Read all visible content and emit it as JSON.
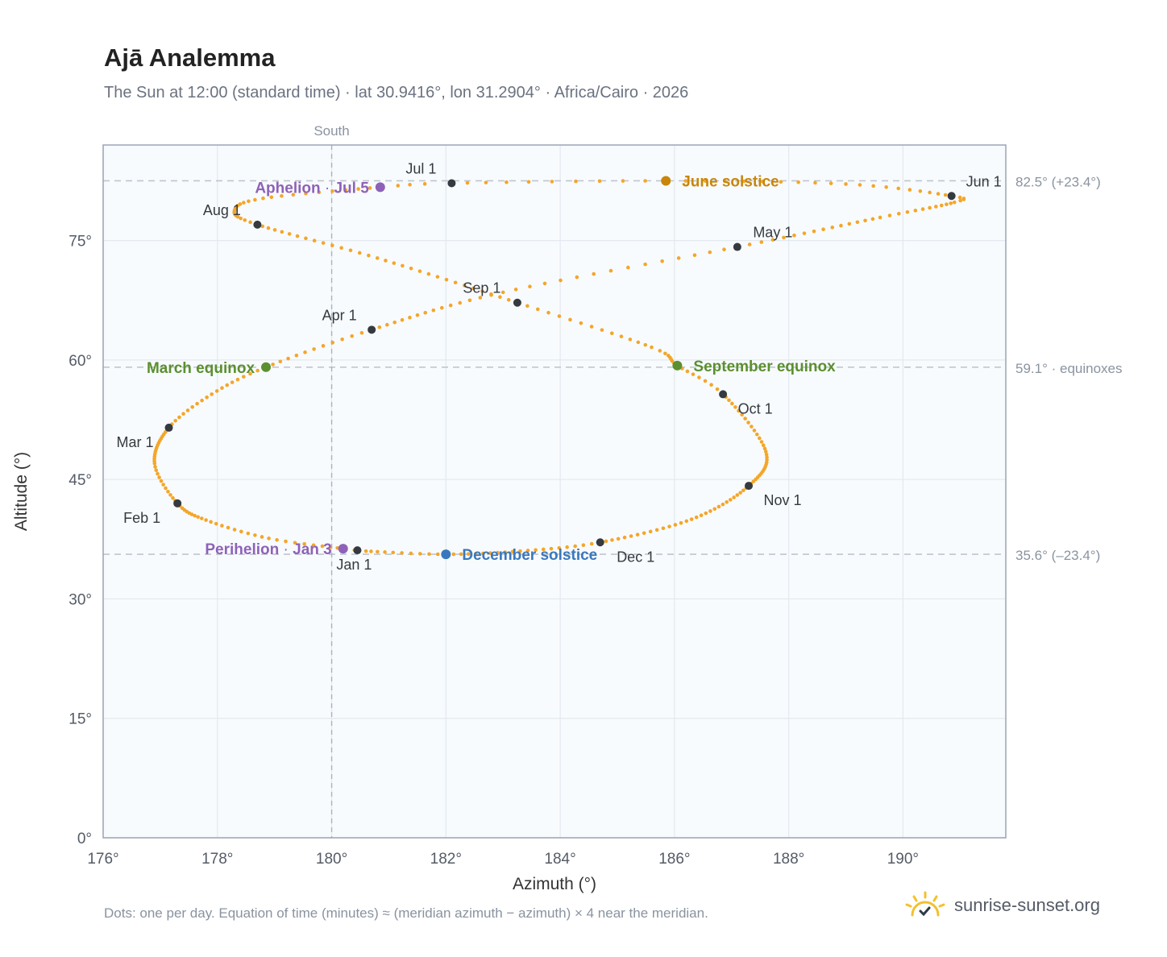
{
  "header": {
    "title": "Ajā Analemma",
    "subtitle": "The Sun at 12:00 (standard time) · lat 30.9416°, lon 31.2904° · Africa/Cairo · 2026"
  },
  "footer": {
    "note": "Dots: one per day. Equation of time (minutes) ≈ (meridian azimuth − azimuth) × 4 near the meridian.",
    "brand": "sunrise-sunset.org",
    "brand_icon": "sun-check-icon"
  },
  "colors": {
    "path": "#f4a62a",
    "month_marker": "#343a40",
    "aphelion": "#8e62b8",
    "june_solstice": "#c8860a",
    "equinox": "#5b8f30",
    "december_solstice": "#3a78bd",
    "plot_bg": "#f8fbfd",
    "grid": "#e3e9ef",
    "frame": "#9aa5b3",
    "refline": "#c0c6ce"
  },
  "chart_data": {
    "type": "scatter",
    "xlabel": "Azimuth (°)",
    "ylabel": "Altitude (°)",
    "xlim": [
      176,
      191.8
    ],
    "ylim": [
      0,
      87
    ],
    "x_ticks": [
      176,
      178,
      180,
      182,
      184,
      186,
      188,
      190
    ],
    "x_tick_labels": [
      "176°",
      "178°",
      "180°",
      "182°",
      "184°",
      "186°",
      "188°",
      "190°"
    ],
    "y_ticks": [
      0,
      15,
      30,
      45,
      60,
      75
    ],
    "y_tick_labels": [
      "0°",
      "15°",
      "30°",
      "45°",
      "60°",
      "75°"
    ],
    "grid": true,
    "meridian": {
      "x": 180,
      "label": "South"
    },
    "reference_lines": [
      {
        "y": 82.5,
        "label": "82.5° (+23.4°)"
      },
      {
        "y": 59.1,
        "label": "59.1° · equinoxes"
      },
      {
        "y": 35.6,
        "label": "35.6° (–23.4°)"
      }
    ],
    "daily_path_keyframes": [
      {
        "day": 1,
        "az": 180.45,
        "alt": 36.1
      },
      {
        "day": 3,
        "az": 180.2,
        "alt": 36.3
      },
      {
        "day": 12,
        "az": 178.9,
        "alt": 37.6
      },
      {
        "day": 22,
        "az": 177.8,
        "alt": 39.9
      },
      {
        "day": 32,
        "az": 177.3,
        "alt": 42.0
      },
      {
        "day": 44,
        "az": 176.9,
        "alt": 47.0
      },
      {
        "day": 60,
        "az": 177.15,
        "alt": 51.5
      },
      {
        "day": 70,
        "az": 177.9,
        "alt": 55.7
      },
      {
        "day": 79,
        "az": 178.85,
        "alt": 59.1
      },
      {
        "day": 91,
        "az": 180.7,
        "alt": 63.8
      },
      {
        "day": 106,
        "az": 183.0,
        "alt": 68.5
      },
      {
        "day": 121,
        "az": 187.1,
        "alt": 74.2
      },
      {
        "day": 136,
        "az": 189.6,
        "alt": 77.9
      },
      {
        "day": 147,
        "az": 190.9,
        "alt": 79.8
      },
      {
        "day": 152,
        "az": 190.85,
        "alt": 80.6
      },
      {
        "day": 162,
        "az": 189.0,
        "alt": 82.1
      },
      {
        "day": 172,
        "az": 185.85,
        "alt": 82.5
      },
      {
        "day": 182,
        "az": 182.1,
        "alt": 82.2
      },
      {
        "day": 186,
        "az": 180.85,
        "alt": 81.7
      },
      {
        "day": 196,
        "az": 178.8,
        "alt": 80.3
      },
      {
        "day": 204,
        "az": 178.3,
        "alt": 78.8
      },
      {
        "day": 213,
        "az": 178.7,
        "alt": 77.0
      },
      {
        "day": 228,
        "az": 180.8,
        "alt": 72.8
      },
      {
        "day": 244,
        "az": 183.25,
        "alt": 67.2
      },
      {
        "day": 258,
        "az": 185.6,
        "alt": 61.6
      },
      {
        "day": 266,
        "az": 186.05,
        "alt": 59.3
      },
      {
        "day": 274,
        "az": 186.85,
        "alt": 55.7
      },
      {
        "day": 290,
        "az": 187.6,
        "alt": 48.5
      },
      {
        "day": 305,
        "az": 187.3,
        "alt": 44.2
      },
      {
        "day": 320,
        "az": 186.3,
        "alt": 40.0
      },
      {
        "day": 335,
        "az": 184.7,
        "alt": 37.1
      },
      {
        "day": 345,
        "az": 183.3,
        "alt": 36.0
      },
      {
        "day": 355,
        "az": 182.0,
        "alt": 35.6
      },
      {
        "day": 365,
        "az": 180.6,
        "alt": 36.0
      }
    ],
    "month_markers": [
      {
        "label": "Jan 1",
        "az": 180.45,
        "alt": 36.1,
        "lx": -4,
        "ly": 24
      },
      {
        "label": "Feb 1",
        "az": 177.3,
        "alt": 42.0,
        "lx": -44,
        "ly": 24
      },
      {
        "label": "Mar 1",
        "az": 177.15,
        "alt": 51.5,
        "lx": -42,
        "ly": 24
      },
      {
        "label": "Apr 1",
        "az": 180.7,
        "alt": 63.8,
        "lx": -40,
        "ly": -12
      },
      {
        "label": "May 1",
        "az": 187.1,
        "alt": 74.2,
        "lx": 44,
        "ly": -12
      },
      {
        "label": "Jun 1",
        "az": 190.85,
        "alt": 80.6,
        "lx": 40,
        "ly": -12
      },
      {
        "label": "Jul 1",
        "az": 182.1,
        "alt": 82.2,
        "lx": -38,
        "ly": -12
      },
      {
        "label": "Aug 1",
        "az": 178.7,
        "alt": 77.0,
        "lx": -44,
        "ly": -12
      },
      {
        "label": "Sep 1",
        "az": 183.25,
        "alt": 67.2,
        "lx": -44,
        "ly": -12
      },
      {
        "label": "Oct 1",
        "az": 186.85,
        "alt": 55.7,
        "lx": 40,
        "ly": 24
      },
      {
        "label": "Nov 1",
        "az": 187.3,
        "alt": 44.2,
        "lx": 42,
        "ly": 24
      },
      {
        "label": "Dec 1",
        "az": 184.7,
        "alt": 37.1,
        "lx": 44,
        "ly": 24
      }
    ],
    "events": [
      {
        "name": "Perihelion",
        "date": "Jan 3",
        "az": 180.2,
        "alt": 36.3,
        "color": "#8e62b8",
        "side": "left"
      },
      {
        "name": "Aphelion",
        "date": "Jul 5",
        "az": 180.85,
        "alt": 81.7,
        "color": "#8e62b8",
        "side": "left"
      },
      {
        "name": "March equinox",
        "date": "",
        "az": 178.85,
        "alt": 59.1,
        "color": "#5b8f30",
        "side": "left"
      },
      {
        "name": "September equinox",
        "date": "",
        "az": 186.05,
        "alt": 59.3,
        "color": "#5b8f30",
        "side": "right"
      },
      {
        "name": "June solstice",
        "date": "",
        "az": 185.85,
        "alt": 82.5,
        "color": "#c8860a",
        "side": "right"
      },
      {
        "name": "December solstice",
        "date": "",
        "az": 182.0,
        "alt": 35.6,
        "color": "#3a78bd",
        "side": "right"
      }
    ]
  }
}
